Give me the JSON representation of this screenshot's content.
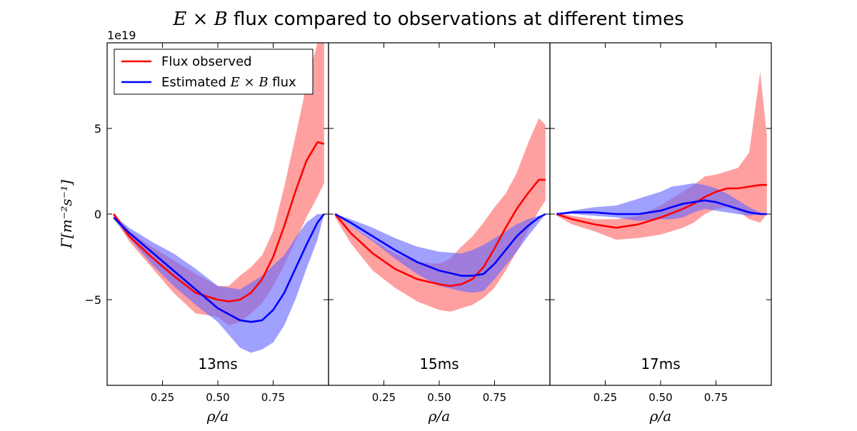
{
  "chart_data": {
    "type": "line",
    "title_math": "E × B",
    "title_text": " flux compared to observations at different times",
    "ylabel": "Γ[m⁻²s⁻¹]",
    "y_offset_label": "1e19",
    "ylim": [
      -10,
      10
    ],
    "yticks": [
      5,
      0,
      -5
    ],
    "ytick_labels": [
      "5",
      "0",
      "−5"
    ],
    "xlim": [
      0.0,
      1.0
    ],
    "xticks": [
      0.25,
      0.5,
      0.75
    ],
    "xtick_labels": [
      "0.25",
      "0.50",
      "0.75"
    ],
    "xlabel": "ρ/a",
    "legend": {
      "placement": "top-left",
      "entries": [
        {
          "label": "Flux observed",
          "color": "#ff0000"
        },
        {
          "label_math": "E × B",
          "label_prefix": "Estimated ",
          "label_suffix": " flux",
          "color": "#0000ff"
        }
      ]
    },
    "colors": {
      "observed": "#ff0000",
      "observed_band": "#ff6666",
      "estimated": "#0000ff",
      "estimated_band": "#6666ff"
    },
    "panels": [
      {
        "label": "13ms",
        "observed": {
          "x": [
            0.03,
            0.1,
            0.2,
            0.3,
            0.4,
            0.5,
            0.55,
            0.6,
            0.65,
            0.7,
            0.75,
            0.8,
            0.85,
            0.9,
            0.95,
            0.98
          ],
          "y": [
            0.0,
            -1.3,
            -2.5,
            -3.6,
            -4.6,
            -5.0,
            -5.1,
            -5.0,
            -4.6,
            -3.8,
            -2.5,
            -0.7,
            1.3,
            3.1,
            4.2,
            4.1
          ],
          "lower": [
            -0.2,
            -1.6,
            -3.1,
            -4.6,
            -5.8,
            -6.0,
            -6.5,
            -6.3,
            -5.8,
            -5.2,
            -4.2,
            -3.0,
            -1.6,
            -0.2,
            1.0,
            1.8
          ],
          "upper": [
            0.1,
            -1.0,
            -1.9,
            -2.7,
            -3.5,
            -4.2,
            -4.2,
            -3.6,
            -3.1,
            -2.4,
            -1.0,
            1.6,
            4.5,
            7.5,
            10.0,
            10.0
          ]
        },
        "estimated": {
          "x": [
            0.03,
            0.1,
            0.2,
            0.3,
            0.4,
            0.5,
            0.6,
            0.65,
            0.7,
            0.75,
            0.8,
            0.85,
            0.9,
            0.95,
            0.98
          ],
          "y": [
            -0.2,
            -1.1,
            -2.2,
            -3.3,
            -4.4,
            -5.5,
            -6.2,
            -6.3,
            -6.2,
            -5.6,
            -4.6,
            -3.2,
            -1.8,
            -0.5,
            0.0
          ],
          "lower": [
            -0.3,
            -1.4,
            -2.9,
            -4.2,
            -5.3,
            -6.3,
            -7.8,
            -8.1,
            -7.9,
            -7.5,
            -6.5,
            -5.0,
            -3.2,
            -1.5,
            0.0
          ],
          "upper": [
            -0.1,
            -0.8,
            -1.6,
            -2.3,
            -3.2,
            -4.2,
            -4.4,
            -4.0,
            -3.6,
            -3.0,
            -2.4,
            -1.4,
            -0.5,
            0.0,
            0.0
          ]
        }
      },
      {
        "label": "15ms",
        "observed": {
          "x": [
            0.03,
            0.1,
            0.2,
            0.3,
            0.4,
            0.5,
            0.55,
            0.6,
            0.65,
            0.7,
            0.75,
            0.8,
            0.85,
            0.9,
            0.95,
            0.98
          ],
          "y": [
            0.0,
            -1.1,
            -2.3,
            -3.2,
            -3.8,
            -4.1,
            -4.2,
            -4.1,
            -3.8,
            -3.1,
            -2.0,
            -0.8,
            0.3,
            1.2,
            2.0,
            2.0
          ],
          "lower": [
            -0.2,
            -1.7,
            -3.3,
            -4.3,
            -5.1,
            -5.6,
            -5.7,
            -5.5,
            -5.3,
            -4.9,
            -4.3,
            -3.3,
            -2.2,
            -1.0,
            0.2,
            0.8
          ],
          "upper": [
            0.1,
            -0.7,
            -1.5,
            -2.3,
            -2.8,
            -2.9,
            -2.6,
            -1.9,
            -1.3,
            -0.5,
            0.4,
            1.2,
            2.4,
            4.1,
            5.6,
            5.2
          ]
        },
        "estimated": {
          "x": [
            0.03,
            0.1,
            0.2,
            0.3,
            0.4,
            0.5,
            0.6,
            0.65,
            0.7,
            0.75,
            0.8,
            0.85,
            0.9,
            0.95,
            0.98
          ],
          "y": [
            0.0,
            -0.5,
            -1.3,
            -2.1,
            -2.8,
            -3.3,
            -3.6,
            -3.6,
            -3.5,
            -2.9,
            -2.1,
            -1.3,
            -0.7,
            -0.2,
            0.0
          ],
          "lower": [
            0.0,
            -0.7,
            -1.6,
            -2.6,
            -3.5,
            -4.2,
            -4.5,
            -4.6,
            -4.5,
            -3.8,
            -3.0,
            -2.2,
            -1.3,
            -0.5,
            0.0
          ],
          "upper": [
            0.0,
            -0.3,
            -0.8,
            -1.4,
            -1.9,
            -2.2,
            -2.3,
            -2.1,
            -1.8,
            -1.4,
            -1.0,
            -0.6,
            -0.3,
            -0.1,
            0.0
          ]
        }
      },
      {
        "label": "17ms",
        "observed": {
          "x": [
            0.03,
            0.1,
            0.2,
            0.3,
            0.4,
            0.5,
            0.6,
            0.65,
            0.7,
            0.75,
            0.8,
            0.85,
            0.9,
            0.95,
            0.98
          ],
          "y": [
            0.0,
            -0.3,
            -0.6,
            -0.8,
            -0.6,
            -0.2,
            0.3,
            0.6,
            1.0,
            1.3,
            1.5,
            1.5,
            1.6,
            1.7,
            1.7
          ],
          "lower": [
            -0.1,
            -0.6,
            -1.0,
            -1.5,
            -1.4,
            -1.2,
            -0.8,
            -0.5,
            0.0,
            0.3,
            0.4,
            0.2,
            -0.3,
            -0.5,
            0.0
          ],
          "upper": [
            0.1,
            -0.1,
            -0.3,
            -0.3,
            -0.1,
            0.5,
            1.3,
            1.7,
            2.2,
            2.3,
            2.5,
            2.7,
            3.6,
            8.3,
            4.6
          ]
        },
        "estimated": {
          "x": [
            0.03,
            0.1,
            0.2,
            0.3,
            0.4,
            0.5,
            0.55,
            0.6,
            0.65,
            0.7,
            0.75,
            0.8,
            0.85,
            0.9,
            0.95,
            0.98
          ],
          "y": [
            0.0,
            0.1,
            0.1,
            0.0,
            0.0,
            0.2,
            0.4,
            0.6,
            0.7,
            0.8,
            0.7,
            0.5,
            0.3,
            0.1,
            0.0,
            0.0
          ],
          "lower": [
            0.0,
            0.0,
            -0.1,
            -0.2,
            -0.4,
            -0.3,
            -0.3,
            -0.2,
            0.1,
            0.3,
            0.2,
            0.1,
            0.0,
            -0.1,
            0.0,
            0.0
          ],
          "upper": [
            0.0,
            0.2,
            0.4,
            0.5,
            0.9,
            1.3,
            1.6,
            1.7,
            1.8,
            1.7,
            1.5,
            1.2,
            0.8,
            0.4,
            0.1,
            0.0
          ]
        }
      }
    ]
  }
}
